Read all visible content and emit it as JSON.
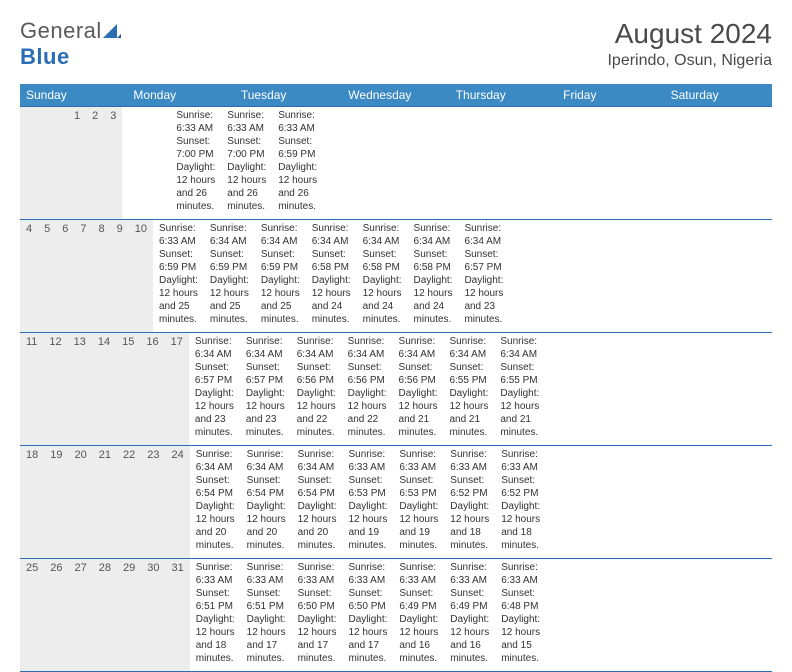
{
  "logo": {
    "text1": "General",
    "text2": "Blue"
  },
  "title": "August 2024",
  "location": "Iperindo, Osun, Nigeria",
  "colors": {
    "header_bg": "#3b8ac4",
    "border": "#2a6db5",
    "daynum_bg": "#ededed",
    "text": "#333333"
  },
  "weekdays": [
    "Sunday",
    "Monday",
    "Tuesday",
    "Wednesday",
    "Thursday",
    "Friday",
    "Saturday"
  ],
  "weeks": [
    [
      {
        "day": "",
        "sunrise": "",
        "sunset": "",
        "daylight": ""
      },
      {
        "day": "",
        "sunrise": "",
        "sunset": "",
        "daylight": ""
      },
      {
        "day": "",
        "sunrise": "",
        "sunset": "",
        "daylight": ""
      },
      {
        "day": "",
        "sunrise": "",
        "sunset": "",
        "daylight": ""
      },
      {
        "day": "1",
        "sunrise": "Sunrise: 6:33 AM",
        "sunset": "Sunset: 7:00 PM",
        "daylight": "Daylight: 12 hours and 26 minutes."
      },
      {
        "day": "2",
        "sunrise": "Sunrise: 6:33 AM",
        "sunset": "Sunset: 7:00 PM",
        "daylight": "Daylight: 12 hours and 26 minutes."
      },
      {
        "day": "3",
        "sunrise": "Sunrise: 6:33 AM",
        "sunset": "Sunset: 6:59 PM",
        "daylight": "Daylight: 12 hours and 26 minutes."
      }
    ],
    [
      {
        "day": "4",
        "sunrise": "Sunrise: 6:33 AM",
        "sunset": "Sunset: 6:59 PM",
        "daylight": "Daylight: 12 hours and 25 minutes."
      },
      {
        "day": "5",
        "sunrise": "Sunrise: 6:34 AM",
        "sunset": "Sunset: 6:59 PM",
        "daylight": "Daylight: 12 hours and 25 minutes."
      },
      {
        "day": "6",
        "sunrise": "Sunrise: 6:34 AM",
        "sunset": "Sunset: 6:59 PM",
        "daylight": "Daylight: 12 hours and 25 minutes."
      },
      {
        "day": "7",
        "sunrise": "Sunrise: 6:34 AM",
        "sunset": "Sunset: 6:58 PM",
        "daylight": "Daylight: 12 hours and 24 minutes."
      },
      {
        "day": "8",
        "sunrise": "Sunrise: 6:34 AM",
        "sunset": "Sunset: 6:58 PM",
        "daylight": "Daylight: 12 hours and 24 minutes."
      },
      {
        "day": "9",
        "sunrise": "Sunrise: 6:34 AM",
        "sunset": "Sunset: 6:58 PM",
        "daylight": "Daylight: 12 hours and 24 minutes."
      },
      {
        "day": "10",
        "sunrise": "Sunrise: 6:34 AM",
        "sunset": "Sunset: 6:57 PM",
        "daylight": "Daylight: 12 hours and 23 minutes."
      }
    ],
    [
      {
        "day": "11",
        "sunrise": "Sunrise: 6:34 AM",
        "sunset": "Sunset: 6:57 PM",
        "daylight": "Daylight: 12 hours and 23 minutes."
      },
      {
        "day": "12",
        "sunrise": "Sunrise: 6:34 AM",
        "sunset": "Sunset: 6:57 PM",
        "daylight": "Daylight: 12 hours and 23 minutes."
      },
      {
        "day": "13",
        "sunrise": "Sunrise: 6:34 AM",
        "sunset": "Sunset: 6:56 PM",
        "daylight": "Daylight: 12 hours and 22 minutes."
      },
      {
        "day": "14",
        "sunrise": "Sunrise: 6:34 AM",
        "sunset": "Sunset: 6:56 PM",
        "daylight": "Daylight: 12 hours and 22 minutes."
      },
      {
        "day": "15",
        "sunrise": "Sunrise: 6:34 AM",
        "sunset": "Sunset: 6:56 PM",
        "daylight": "Daylight: 12 hours and 21 minutes."
      },
      {
        "day": "16",
        "sunrise": "Sunrise: 6:34 AM",
        "sunset": "Sunset: 6:55 PM",
        "daylight": "Daylight: 12 hours and 21 minutes."
      },
      {
        "day": "17",
        "sunrise": "Sunrise: 6:34 AM",
        "sunset": "Sunset: 6:55 PM",
        "daylight": "Daylight: 12 hours and 21 minutes."
      }
    ],
    [
      {
        "day": "18",
        "sunrise": "Sunrise: 6:34 AM",
        "sunset": "Sunset: 6:54 PM",
        "daylight": "Daylight: 12 hours and 20 minutes."
      },
      {
        "day": "19",
        "sunrise": "Sunrise: 6:34 AM",
        "sunset": "Sunset: 6:54 PM",
        "daylight": "Daylight: 12 hours and 20 minutes."
      },
      {
        "day": "20",
        "sunrise": "Sunrise: 6:34 AM",
        "sunset": "Sunset: 6:54 PM",
        "daylight": "Daylight: 12 hours and 20 minutes."
      },
      {
        "day": "21",
        "sunrise": "Sunrise: 6:33 AM",
        "sunset": "Sunset: 6:53 PM",
        "daylight": "Daylight: 12 hours and 19 minutes."
      },
      {
        "day": "22",
        "sunrise": "Sunrise: 6:33 AM",
        "sunset": "Sunset: 6:53 PM",
        "daylight": "Daylight: 12 hours and 19 minutes."
      },
      {
        "day": "23",
        "sunrise": "Sunrise: 6:33 AM",
        "sunset": "Sunset: 6:52 PM",
        "daylight": "Daylight: 12 hours and 18 minutes."
      },
      {
        "day": "24",
        "sunrise": "Sunrise: 6:33 AM",
        "sunset": "Sunset: 6:52 PM",
        "daylight": "Daylight: 12 hours and 18 minutes."
      }
    ],
    [
      {
        "day": "25",
        "sunrise": "Sunrise: 6:33 AM",
        "sunset": "Sunset: 6:51 PM",
        "daylight": "Daylight: 12 hours and 18 minutes."
      },
      {
        "day": "26",
        "sunrise": "Sunrise: 6:33 AM",
        "sunset": "Sunset: 6:51 PM",
        "daylight": "Daylight: 12 hours and 17 minutes."
      },
      {
        "day": "27",
        "sunrise": "Sunrise: 6:33 AM",
        "sunset": "Sunset: 6:50 PM",
        "daylight": "Daylight: 12 hours and 17 minutes."
      },
      {
        "day": "28",
        "sunrise": "Sunrise: 6:33 AM",
        "sunset": "Sunset: 6:50 PM",
        "daylight": "Daylight: 12 hours and 17 minutes."
      },
      {
        "day": "29",
        "sunrise": "Sunrise: 6:33 AM",
        "sunset": "Sunset: 6:49 PM",
        "daylight": "Daylight: 12 hours and 16 minutes."
      },
      {
        "day": "30",
        "sunrise": "Sunrise: 6:33 AM",
        "sunset": "Sunset: 6:49 PM",
        "daylight": "Daylight: 12 hours and 16 minutes."
      },
      {
        "day": "31",
        "sunrise": "Sunrise: 6:33 AM",
        "sunset": "Sunset: 6:48 PM",
        "daylight": "Daylight: 12 hours and 15 minutes."
      }
    ]
  ]
}
